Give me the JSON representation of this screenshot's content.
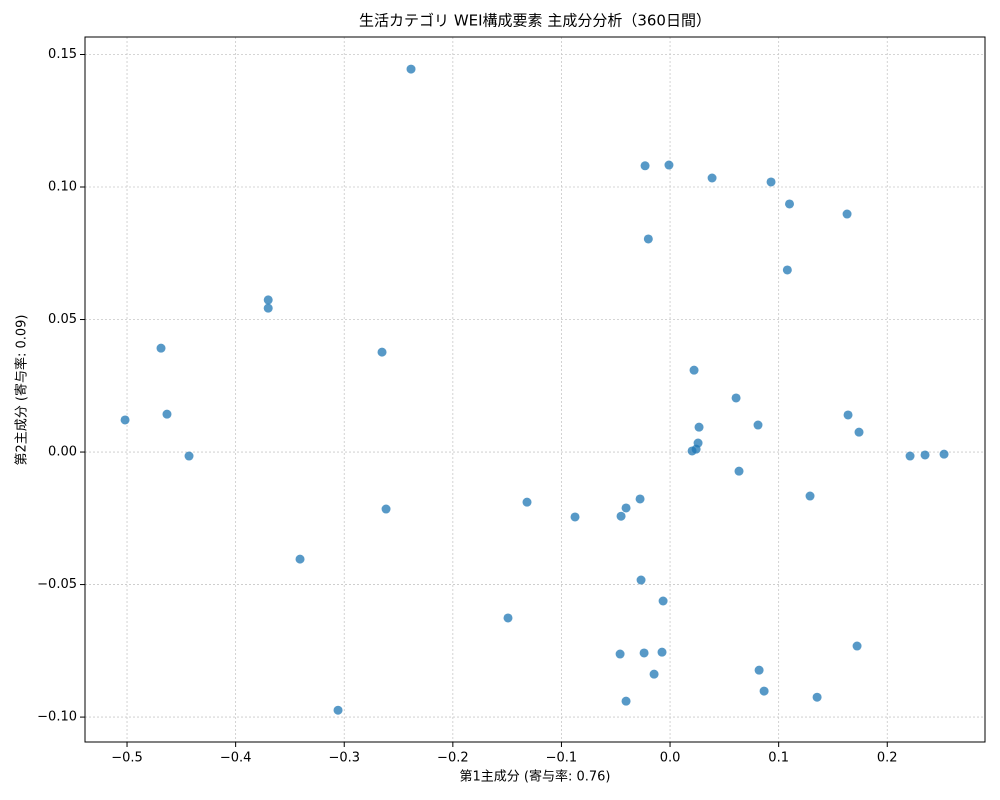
{
  "chart_data": {
    "type": "scatter",
    "title": "生活カテゴリ WEI構成要素 主成分分析（360日間）",
    "xlabel": "第1主成分 (寄与率: 0.76)",
    "ylabel": "第2主成分 (寄与率: 0.09)",
    "color": "#1f77b4",
    "grid": true,
    "xlim": [
      -0.5387,
      0.29
    ],
    "ylim": [
      -0.1094,
      0.1566
    ],
    "xticks": [
      {
        "value": -0.5,
        "label": "−0.5"
      },
      {
        "value": -0.4,
        "label": "−0.4"
      },
      {
        "value": -0.3,
        "label": "−0.3"
      },
      {
        "value": -0.2,
        "label": "−0.2"
      },
      {
        "value": -0.1,
        "label": "−0.1"
      },
      {
        "value": 0,
        "label": "0.0"
      },
      0.1,
      0.2
    ],
    "yticks": [
      {
        "value": -0.1,
        "label": "−0.10"
      },
      {
        "value": -0.05,
        "label": "−0.05"
      },
      {
        "value": 0,
        "label": "0.00"
      },
      0.05,
      {
        "value": 0.1,
        "label": "0.10"
      },
      0.15
    ],
    "x": [
      -0.2385,
      -0.023,
      -0.001,
      0.0387,
      0.093,
      0.11,
      0.163,
      -0.02,
      0.108,
      -0.37,
      -0.37,
      -0.4687,
      -0.2652,
      0.0221,
      0.0608,
      -0.5018,
      -0.4632,
      0.1639,
      0.081,
      0.0267,
      0.174,
      0.0258,
      0.024,
      0.0203,
      -0.4429,
      0.221,
      0.2348,
      0.2523,
      0.0635,
      0.1289,
      -0.1317,
      -0.0276,
      -0.0405,
      -0.0451,
      -0.2615,
      -0.0875,
      -0.3407,
      -0.0267,
      -0.0064,
      -0.1492,
      0.1722,
      -0.046,
      -0.0239,
      -0.0074,
      0.082,
      -0.0147,
      0.0866,
      0.1354,
      -0.0405,
      -0.3057
    ],
    "y": [
      0.1445,
      0.108,
      0.1083,
      0.1034,
      0.1019,
      0.0936,
      0.0898,
      0.0804,
      0.0687,
      0.0574,
      0.0543,
      0.0392,
      0.0377,
      0.0309,
      0.0204,
      0.0121,
      0.0143,
      0.014,
      0.0102,
      0.0094,
      0.0075,
      0.0034,
      0.0011,
      0.0004,
      -0.0015,
      -0.0015,
      -0.0011,
      -0.0008,
      -0.0072,
      -0.0166,
      -0.0189,
      -0.0177,
      -0.0211,
      -0.0242,
      -0.0215,
      -0.0245,
      -0.0404,
      -0.0483,
      -0.0562,
      -0.0626,
      -0.0732,
      -0.0762,
      -0.0758,
      -0.0755,
      -0.0823,
      -0.0838,
      -0.0902,
      -0.0925,
      -0.094,
      -0.0974
    ]
  }
}
